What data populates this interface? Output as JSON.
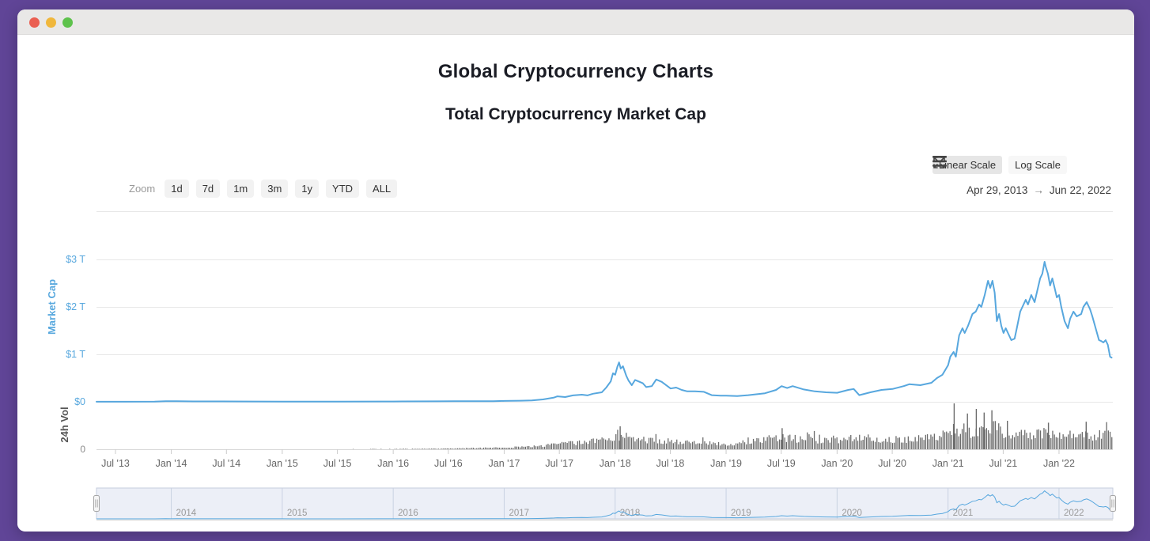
{
  "window": {
    "traffic_lights": [
      {
        "name": "close",
        "color": "#ea5f52"
      },
      {
        "name": "minimize",
        "color": "#f0b73c"
      },
      {
        "name": "zoom",
        "color": "#5ec24c"
      }
    ]
  },
  "header": {
    "title": "Global Cryptocurrency Charts",
    "subtitle": "Total Cryptocurrency Market Cap"
  },
  "toolbar": {
    "zoom_label": "Zoom",
    "ranges": [
      "1d",
      "7d",
      "1m",
      "3m",
      "1y",
      "YTD",
      "ALL"
    ],
    "scale_buttons": [
      {
        "label": "Linear Scale",
        "active": true
      },
      {
        "label": "Log Scale",
        "active": false
      }
    ],
    "icons": [
      "fullscreen-icon",
      "menu-icon"
    ],
    "date_range": {
      "from": "Apr 29, 2013",
      "arrow": "→",
      "to": "Jun 22, 2022"
    }
  },
  "chart_data": {
    "type": "line",
    "title": "Total Cryptocurrency Market Cap",
    "x_range": [
      "Apr 29, 2013",
      "Jun 22, 2022"
    ],
    "y_axis": {
      "label": "Market Cap",
      "unit": "USD trillions",
      "ylim": [
        0,
        3.5
      ],
      "ticks": [
        {
          "value": 3,
          "label": "$3 T"
        },
        {
          "value": 2,
          "label": "$2 T"
        },
        {
          "value": 1,
          "label": "$1 T"
        },
        {
          "value": 0,
          "label": "$0"
        }
      ]
    },
    "volume_axis": {
      "label": "24h Vol",
      "zero_label": "0"
    },
    "x_axis": {
      "ticks": [
        {
          "t": 2013.497,
          "label": "Jul '13"
        },
        {
          "t": 2014.0,
          "label": "Jan '14"
        },
        {
          "t": 2014.497,
          "label": "Jul '14"
        },
        {
          "t": 2015.0,
          "label": "Jan '15"
        },
        {
          "t": 2015.497,
          "label": "Jul '15"
        },
        {
          "t": 2016.0,
          "label": "Jan '16"
        },
        {
          "t": 2016.497,
          "label": "Jul '16"
        },
        {
          "t": 2017.0,
          "label": "Jan '17"
        },
        {
          "t": 2017.497,
          "label": "Jul '17"
        },
        {
          "t": 2018.0,
          "label": "Jan '18"
        },
        {
          "t": 2018.497,
          "label": "Jul '18"
        },
        {
          "t": 2019.0,
          "label": "Jan '19"
        },
        {
          "t": 2019.497,
          "label": "Jul '19"
        },
        {
          "t": 2020.0,
          "label": "Jan '20"
        },
        {
          "t": 2020.497,
          "label": "Jul '20"
        },
        {
          "t": 2021.0,
          "label": "Jan '21"
        },
        {
          "t": 2021.497,
          "label": "Jul '21"
        },
        {
          "t": 2022.0,
          "label": "Jan '22"
        }
      ]
    },
    "navigator": {
      "years": [
        {
          "t": 2014,
          "label": "2014"
        },
        {
          "t": 2015,
          "label": "2015"
        },
        {
          "t": 2016,
          "label": "2016"
        },
        {
          "t": 2017,
          "label": "2017"
        },
        {
          "t": 2018,
          "label": "2018"
        },
        {
          "t": 2019,
          "label": "2019"
        },
        {
          "t": 2020,
          "label": "2020"
        },
        {
          "t": 2021,
          "label": "2021"
        },
        {
          "t": 2022,
          "label": "2022"
        }
      ]
    },
    "market_cap_series": [
      [
        2013.326,
        0.0015
      ],
      [
        2013.6,
        0.001
      ],
      [
        2013.85,
        0.003
      ],
      [
        2013.95,
        0.013
      ],
      [
        2014.0,
        0.011
      ],
      [
        2014.05,
        0.014
      ],
      [
        2014.2,
        0.008
      ],
      [
        2014.45,
        0.008
      ],
      [
        2014.7,
        0.006
      ],
      [
        2015.0,
        0.0045
      ],
      [
        2015.1,
        0.003
      ],
      [
        2015.5,
        0.004
      ],
      [
        2015.9,
        0.006
      ],
      [
        2016.0,
        0.007
      ],
      [
        2016.4,
        0.0105
      ],
      [
        2016.55,
        0.012
      ],
      [
        2016.9,
        0.014
      ],
      [
        2017.0,
        0.0175
      ],
      [
        2017.15,
        0.024
      ],
      [
        2017.25,
        0.03
      ],
      [
        2017.35,
        0.05
      ],
      [
        2017.45,
        0.09
      ],
      [
        2017.48,
        0.115
      ],
      [
        2017.55,
        0.1
      ],
      [
        2017.62,
        0.135
      ],
      [
        2017.7,
        0.15
      ],
      [
        2017.75,
        0.135
      ],
      [
        2017.8,
        0.17
      ],
      [
        2017.88,
        0.2
      ],
      [
        2017.92,
        0.3
      ],
      [
        2017.96,
        0.43
      ],
      [
        2017.98,
        0.6
      ],
      [
        2018.0,
        0.57
      ],
      [
        2018.02,
        0.74
      ],
      [
        2018.035,
        0.83
      ],
      [
        2018.05,
        0.7
      ],
      [
        2018.07,
        0.75
      ],
      [
        2018.1,
        0.55
      ],
      [
        2018.12,
        0.45
      ],
      [
        2018.15,
        0.35
      ],
      [
        2018.18,
        0.46
      ],
      [
        2018.2,
        0.44
      ],
      [
        2018.25,
        0.39
      ],
      [
        2018.28,
        0.31
      ],
      [
        2018.33,
        0.33
      ],
      [
        2018.37,
        0.47
      ],
      [
        2018.42,
        0.42
      ],
      [
        2018.5,
        0.28
      ],
      [
        2018.55,
        0.3
      ],
      [
        2018.6,
        0.25
      ],
      [
        2018.65,
        0.22
      ],
      [
        2018.72,
        0.22
      ],
      [
        2018.8,
        0.21
      ],
      [
        2018.87,
        0.14
      ],
      [
        2018.95,
        0.13
      ],
      [
        2019.0,
        0.13
      ],
      [
        2019.1,
        0.12
      ],
      [
        2019.2,
        0.14
      ],
      [
        2019.35,
        0.18
      ],
      [
        2019.45,
        0.25
      ],
      [
        2019.5,
        0.33
      ],
      [
        2019.55,
        0.29
      ],
      [
        2019.6,
        0.33
      ],
      [
        2019.7,
        0.26
      ],
      [
        2019.8,
        0.22
      ],
      [
        2019.9,
        0.2
      ],
      [
        2020.0,
        0.19
      ],
      [
        2020.1,
        0.25
      ],
      [
        2020.15,
        0.27
      ],
      [
        2020.2,
        0.14
      ],
      [
        2020.3,
        0.2
      ],
      [
        2020.4,
        0.25
      ],
      [
        2020.5,
        0.27
      ],
      [
        2020.6,
        0.33
      ],
      [
        2020.65,
        0.37
      ],
      [
        2020.75,
        0.35
      ],
      [
        2020.85,
        0.4
      ],
      [
        2020.9,
        0.5
      ],
      [
        2020.95,
        0.57
      ],
      [
        2021.0,
        0.77
      ],
      [
        2021.02,
        0.95
      ],
      [
        2021.05,
        1.05
      ],
      [
        2021.07,
        0.95
      ],
      [
        2021.1,
        1.4
      ],
      [
        2021.13,
        1.55
      ],
      [
        2021.15,
        1.45
      ],
      [
        2021.18,
        1.6
      ],
      [
        2021.22,
        1.85
      ],
      [
        2021.25,
        1.9
      ],
      [
        2021.28,
        2.05
      ],
      [
        2021.3,
        2.0
      ],
      [
        2021.33,
        2.25
      ],
      [
        2021.36,
        2.55
      ],
      [
        2021.38,
        2.4
      ],
      [
        2021.4,
        2.55
      ],
      [
        2021.42,
        2.3
      ],
      [
        2021.44,
        1.7
      ],
      [
        2021.46,
        1.85
      ],
      [
        2021.48,
        1.6
      ],
      [
        2021.5,
        1.45
      ],
      [
        2021.52,
        1.55
      ],
      [
        2021.55,
        1.4
      ],
      [
        2021.57,
        1.3
      ],
      [
        2021.6,
        1.33
      ],
      [
        2021.62,
        1.55
      ],
      [
        2021.65,
        1.9
      ],
      [
        2021.68,
        2.05
      ],
      [
        2021.7,
        2.15
      ],
      [
        2021.72,
        2.05
      ],
      [
        2021.75,
        2.25
      ],
      [
        2021.78,
        2.1
      ],
      [
        2021.8,
        2.3
      ],
      [
        2021.83,
        2.6
      ],
      [
        2021.85,
        2.7
      ],
      [
        2021.87,
        2.95
      ],
      [
        2021.88,
        2.85
      ],
      [
        2021.9,
        2.7
      ],
      [
        2021.92,
        2.45
      ],
      [
        2021.94,
        2.6
      ],
      [
        2021.96,
        2.4
      ],
      [
        2021.98,
        2.2
      ],
      [
        2022.0,
        2.25
      ],
      [
        2022.02,
        2.0
      ],
      [
        2022.05,
        1.7
      ],
      [
        2022.08,
        1.55
      ],
      [
        2022.1,
        1.75
      ],
      [
        2022.13,
        1.9
      ],
      [
        2022.16,
        1.8
      ],
      [
        2022.2,
        1.85
      ],
      [
        2022.22,
        2.0
      ],
      [
        2022.25,
        2.1
      ],
      [
        2022.28,
        1.95
      ],
      [
        2022.3,
        1.8
      ],
      [
        2022.33,
        1.55
      ],
      [
        2022.36,
        1.3
      ],
      [
        2022.38,
        1.28
      ],
      [
        2022.4,
        1.25
      ],
      [
        2022.42,
        1.3
      ],
      [
        2022.44,
        1.2
      ],
      [
        2022.46,
        0.95
      ],
      [
        2022.474,
        0.93
      ]
    ],
    "volume_envelope": [
      [
        2013.326,
        0.0
      ],
      [
        2015.5,
        0.005
      ],
      [
        2016.0,
        0.01
      ],
      [
        2016.5,
        0.02
      ],
      [
        2017.0,
        0.05
      ],
      [
        2017.3,
        0.09
      ],
      [
        2017.5,
        0.16
      ],
      [
        2017.7,
        0.2
      ],
      [
        2017.9,
        0.3
      ],
      [
        2018.04,
        0.42
      ],
      [
        2018.2,
        0.3
      ],
      [
        2018.4,
        0.26
      ],
      [
        2018.6,
        0.2
      ],
      [
        2018.8,
        0.18
      ],
      [
        2019.0,
        0.16
      ],
      [
        2019.2,
        0.24
      ],
      [
        2019.5,
        0.36
      ],
      [
        2019.7,
        0.28
      ],
      [
        2020.0,
        0.26
      ],
      [
        2020.2,
        0.42
      ],
      [
        2020.4,
        0.28
      ],
      [
        2020.7,
        0.3
      ],
      [
        2020.9,
        0.4
      ],
      [
        2021.0,
        0.52
      ],
      [
        2021.1,
        0.6
      ],
      [
        2021.2,
        0.55
      ],
      [
        2021.3,
        0.6
      ],
      [
        2021.4,
        0.65
      ],
      [
        2021.5,
        0.5
      ],
      [
        2021.6,
        0.42
      ],
      [
        2021.7,
        0.45
      ],
      [
        2021.85,
        0.5
      ],
      [
        2021.95,
        0.45
      ],
      [
        2022.0,
        0.5
      ],
      [
        2022.1,
        0.42
      ],
      [
        2022.2,
        0.38
      ],
      [
        2022.35,
        0.42
      ],
      [
        2022.474,
        0.45
      ]
    ],
    "volume_spikes": [
      [
        2021.05,
        1.0
      ],
      [
        2021.17,
        0.78
      ],
      [
        2021.25,
        0.88
      ],
      [
        2021.32,
        0.8
      ],
      [
        2021.39,
        0.85
      ],
      [
        2021.53,
        0.62
      ],
      [
        2021.9,
        0.58
      ],
      [
        2022.24,
        0.6
      ],
      [
        2019.5,
        0.46
      ],
      [
        2018.04,
        0.5
      ]
    ],
    "colors": {
      "line": "#57a7de",
      "volume_bar": "#6b6b6b",
      "grid": "#e7e7e7",
      "axis_label": "#666666",
      "y_tick_label": "#58a8de",
      "vol_label": "#555555",
      "navigator_fill": "rgba(101,125,189,0.12)",
      "navigator_border": "#c6cedd",
      "accent_purple": "#604597"
    }
  }
}
